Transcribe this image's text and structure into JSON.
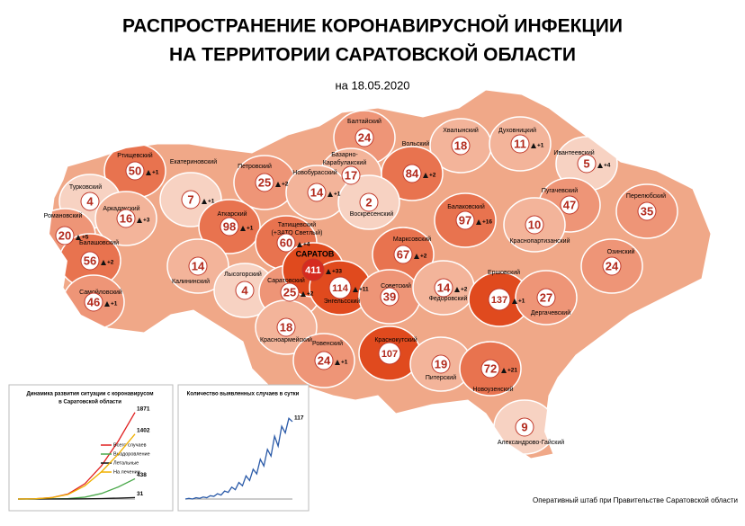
{
  "header": {
    "title": [
      "РАСПРОСТРАНЕНИЕ КОРОНАВИРУСНОЙ ИНФЕКЦИИ",
      "НА ТЕРРИТОРИИ САРАТОВСКОЙ ОБЛАСТИ"
    ],
    "date": "на 18.05.2020"
  },
  "districts": [
    {
      "name": [
        "Ртищевский"
      ],
      "count": 50,
      "delta": "+1"
    },
    {
      "name": [
        "Балтайский"
      ],
      "count": 24
    },
    {
      "name": [
        "Хвалынский"
      ],
      "count": 18
    },
    {
      "name": [
        "Духовницкий"
      ],
      "count": 11,
      "delta": "+1"
    },
    {
      "name": [
        "Ивантеевский"
      ],
      "count": 5,
      "delta": "+4"
    },
    {
      "name": [
        "Базарно-",
        "Карабулакский"
      ],
      "count": 17
    },
    {
      "name": [
        "Вольский"
      ],
      "count": 84,
      "delta": "+2"
    },
    {
      "name": [
        "Петровский"
      ],
      "count": 25,
      "delta": "+2"
    },
    {
      "name": [
        "Новобурасский"
      ],
      "count": 14,
      "delta": "+1"
    },
    {
      "name": [
        "Екатериновский"
      ],
      "count": 7,
      "delta": "+1"
    },
    {
      "name": [
        "Турковский"
      ],
      "count": 4
    },
    {
      "name": [
        "Аркадакский"
      ],
      "count": 16,
      "delta": "+3"
    },
    {
      "name": [
        "Романовский"
      ],
      "count": 20,
      "delta": "+5"
    },
    {
      "name": [
        "Аткарский"
      ],
      "count": 98,
      "delta": "+1"
    },
    {
      "name": [
        "Татищевский",
        "(+ЗАТО Светлый)"
      ],
      "count": 60,
      "delta": "+4"
    },
    {
      "name": [
        "Воскресенский"
      ],
      "count": 2
    },
    {
      "name": [
        "Балаковский"
      ],
      "count": 97,
      "delta": "+16"
    },
    {
      "name": [
        "Пугачевский"
      ],
      "count": 47
    },
    {
      "name": [
        "Перелюбский"
      ],
      "count": 35
    },
    {
      "name": [
        "Краснопартизанский"
      ],
      "count": 10
    },
    {
      "name": [
        "Марксовский"
      ],
      "count": 67,
      "delta": "+2"
    },
    {
      "name": [
        "Балашовский"
      ],
      "count": 56,
      "delta": "+2"
    },
    {
      "name": [
        "Калининский"
      ],
      "count": 14
    },
    {
      "name": [
        "Лысогорский"
      ],
      "count": 4
    },
    {
      "name": [
        "Саратовский"
      ],
      "count": 25,
      "delta": "+2"
    },
    {
      "name": [
        "САРАТОВ"
      ],
      "count": 411,
      "delta": "+33"
    },
    {
      "name": [
        "Энгельсский"
      ],
      "count": 114,
      "delta": "+11"
    },
    {
      "name": [
        "Советский"
      ],
      "count": 39
    },
    {
      "name": [
        "Федоровский"
      ],
      "count": 14,
      "delta": "+2"
    },
    {
      "name": [
        "Ершовский"
      ],
      "count": 137,
      "delta": "+1"
    },
    {
      "name": [
        "Дергачевский"
      ],
      "count": 27
    },
    {
      "name": [
        "Озинский"
      ],
      "count": 24
    },
    {
      "name": [
        "Самойловский"
      ],
      "count": 46,
      "delta": "+1"
    },
    {
      "name": [
        "Красноармейский"
      ],
      "count": 18
    },
    {
      "name": [
        "Ровенский"
      ],
      "count": 24,
      "delta": "+1"
    },
    {
      "name": [
        "Краснокутский"
      ],
      "count": 107
    },
    {
      "name": [
        "Питерский"
      ],
      "count": 19
    },
    {
      "name": [
        "Новоузенский"
      ],
      "count": 72,
      "delta": "+21"
    },
    {
      "name": [
        "Александрово-Гайский"
      ],
      "count": 9
    }
  ],
  "chart_data": [
    {
      "type": "line",
      "title": [
        "Динамика развития ситуации с коронавирусом",
        "в Саратовской области"
      ],
      "ylim": [
        0,
        2000
      ],
      "series": [
        {
          "name": "Всего случаев",
          "color": "#e02020",
          "values": [
            0,
            5,
            30,
            110,
            330,
            720,
            1250,
            1871
          ]
        },
        {
          "name": "Выздоровление",
          "color": "#4aa84a",
          "values": [
            0,
            0,
            2,
            10,
            40,
            120,
            260,
            438
          ]
        },
        {
          "name": "Летальные",
          "color": "#111111",
          "values": [
            0,
            0,
            0,
            1,
            4,
            10,
            20,
            31
          ]
        },
        {
          "name": "На лечении",
          "color": "#f0b000",
          "values": [
            0,
            5,
            28,
            99,
            286,
            590,
            970,
            1402
          ]
        }
      ]
    },
    {
      "type": "line",
      "title": [
        "Количество выявленных случаев в сутки"
      ],
      "ylim": [
        0,
        140
      ],
      "series": [
        {
          "name": "",
          "color": "#2a5aa8",
          "values": [
            0,
            1,
            0,
            2,
            1,
            3,
            2,
            5,
            4,
            8,
            6,
            12,
            10,
            18,
            14,
            25,
            20,
            35,
            28,
            45,
            38,
            60,
            50,
            75,
            65,
            95,
            80,
            110,
            100,
            122,
            117
          ]
        }
      ]
    }
  ],
  "footer": "Оперативный штаб при Правительстве Саратовской области"
}
